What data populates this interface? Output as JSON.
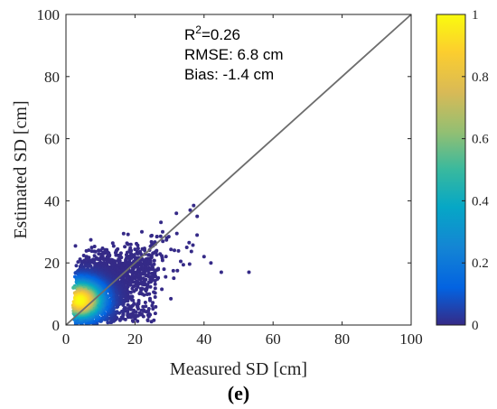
{
  "chart_data": {
    "type": "scatter",
    "subtype": "density scatter",
    "xlabel": "Measured SD [cm]",
    "ylabel": "Estimated SD [cm]",
    "xlim": [
      0,
      100
    ],
    "ylim": [
      0,
      100
    ],
    "x_ticks": [
      0,
      20,
      40,
      60,
      80,
      100
    ],
    "y_ticks": [
      0,
      20,
      40,
      60,
      80,
      100
    ],
    "one_to_one_line": true,
    "grid": false,
    "stats": {
      "r2_prefix": "R",
      "r2_sup": "2",
      "r2_value": "=0.26",
      "rmse": "RMSE: 6.8 cm",
      "bias": "Bias: -1.4 cm"
    },
    "panel_label": "(e)",
    "colorbar": {
      "colormap": "parula",
      "range": [
        0,
        1
      ],
      "ticks": [
        0,
        0.2,
        0.4,
        0.6,
        0.8,
        1
      ],
      "tick_labels": [
        "0",
        "0.2",
        "0.4",
        "0.6",
        "0.8",
        "1"
      ]
    },
    "density_core": {
      "peak": [
        4,
        8
      ],
      "x_range": [
        2,
        53
      ],
      "y_range": [
        0,
        39
      ]
    },
    "outliers": [
      [
        37,
        38.5
      ],
      [
        36,
        37
      ],
      [
        38,
        35
      ],
      [
        32,
        36
      ],
      [
        28,
        30
      ],
      [
        45,
        17
      ],
      [
        53,
        17
      ],
      [
        25,
        26
      ],
      [
        22,
        30
      ],
      [
        35,
        25
      ],
      [
        40,
        22
      ],
      [
        42,
        20
      ],
      [
        18,
        26
      ],
      [
        10,
        24
      ],
      [
        6,
        22
      ]
    ]
  }
}
